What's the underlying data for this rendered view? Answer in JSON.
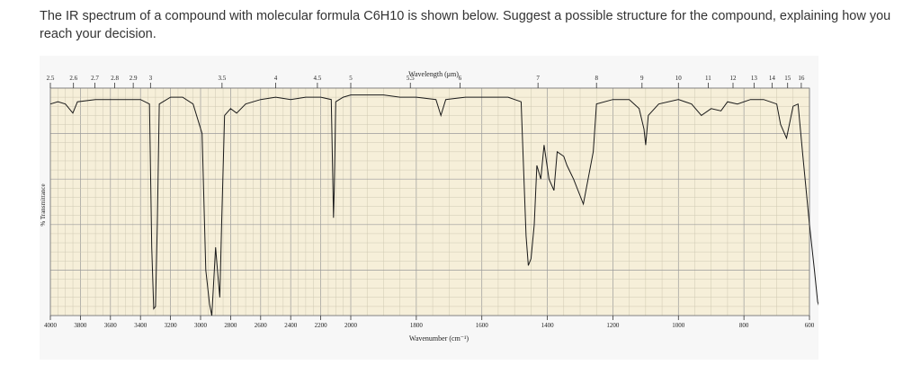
{
  "question": {
    "text": "The IR spectrum of a compound with molecular formula C6H10 is shown below. Suggest a possible structure for the compound, explaining how you reach your decision."
  },
  "chart_data": {
    "type": "line",
    "top_axis": {
      "label": "Wavelength (μm)",
      "ticks": [
        "2.5",
        "2.6",
        "2.7",
        "2.8",
        "2.9",
        "3",
        "3.5",
        "4",
        "4.5",
        "5",
        "5.5",
        "6",
        "7",
        "8",
        "9",
        "10",
        "11",
        "12",
        "13",
        "14",
        "15",
        "16"
      ]
    },
    "bottom_axis": {
      "label": "Wavenumber (cm⁻¹)",
      "ticks": [
        "4000",
        "3800",
        "3600",
        "3400",
        "3200",
        "3000",
        "2800",
        "2600",
        "2400",
        "2200",
        "2000",
        "1800",
        "1600",
        "1400",
        "1200",
        "1000",
        "800",
        "600"
      ],
      "range": [
        4000,
        600
      ]
    },
    "ylabel": "% Transmittance",
    "ylim": [
      0,
      100
    ],
    "grid": true,
    "colors": {
      "paper": "#f6efd9",
      "grid_major": "#9a9a9a",
      "grid_minor": "#cfc8b2",
      "trace": "#1a1a1a"
    },
    "series": [
      {
        "points": [
          [
            4000,
            93
          ],
          [
            3950,
            94
          ],
          [
            3900,
            93
          ],
          [
            3850,
            89
          ],
          [
            3820,
            94
          ],
          [
            3700,
            95
          ],
          [
            3500,
            95
          ],
          [
            3400,
            95
          ],
          [
            3340,
            93
          ],
          [
            3325,
            30
          ],
          [
            3312,
            3
          ],
          [
            3300,
            4
          ],
          [
            3288,
            40
          ],
          [
            3275,
            93
          ],
          [
            3200,
            96
          ],
          [
            3120,
            96
          ],
          [
            3050,
            93
          ],
          [
            2990,
            80
          ],
          [
            2965,
            20
          ],
          [
            2940,
            5
          ],
          [
            2925,
            0
          ],
          [
            2915,
            12
          ],
          [
            2900,
            30
          ],
          [
            2885,
            18
          ],
          [
            2872,
            8
          ],
          [
            2860,
            40
          ],
          [
            2840,
            88
          ],
          [
            2800,
            91
          ],
          [
            2760,
            89
          ],
          [
            2700,
            93
          ],
          [
            2600,
            95
          ],
          [
            2500,
            96
          ],
          [
            2400,
            95
          ],
          [
            2300,
            96
          ],
          [
            2200,
            96
          ],
          [
            2130,
            95
          ],
          [
            2120,
            60
          ],
          [
            2115,
            43
          ],
          [
            2110,
            55
          ],
          [
            2100,
            94
          ],
          [
            2050,
            96
          ],
          [
            2000,
            97
          ],
          [
            1900,
            97
          ],
          [
            1850,
            96
          ],
          [
            1800,
            96
          ],
          [
            1740,
            95
          ],
          [
            1725,
            88
          ],
          [
            1710,
            95
          ],
          [
            1650,
            96
          ],
          [
            1600,
            96
          ],
          [
            1520,
            96
          ],
          [
            1480,
            94
          ],
          [
            1465,
            35
          ],
          [
            1458,
            22
          ],
          [
            1450,
            25
          ],
          [
            1440,
            40
          ],
          [
            1432,
            66
          ],
          [
            1420,
            60
          ],
          [
            1410,
            75
          ],
          [
            1395,
            60
          ],
          [
            1380,
            55
          ],
          [
            1370,
            72
          ],
          [
            1350,
            70
          ],
          [
            1340,
            66
          ],
          [
            1320,
            60
          ],
          [
            1290,
            49
          ],
          [
            1260,
            72
          ],
          [
            1250,
            93
          ],
          [
            1200,
            95
          ],
          [
            1150,
            95
          ],
          [
            1120,
            91
          ],
          [
            1105,
            82
          ],
          [
            1100,
            75
          ],
          [
            1092,
            88
          ],
          [
            1060,
            93
          ],
          [
            1000,
            95
          ],
          [
            960,
            93
          ],
          [
            930,
            88
          ],
          [
            900,
            91
          ],
          [
            870,
            90
          ],
          [
            850,
            94
          ],
          [
            820,
            93
          ],
          [
            780,
            95
          ],
          [
            740,
            95
          ],
          [
            700,
            93
          ],
          [
            688,
            84
          ],
          [
            670,
            78
          ],
          [
            650,
            92
          ],
          [
            635,
            93
          ],
          [
            620,
            70
          ],
          [
            600,
            40
          ],
          [
            585,
            20
          ],
          [
            575,
            6
          ],
          [
            570,
            4
          ],
          [
            562,
            8
          ],
          [
            555,
            30
          ],
          [
            550,
            78
          ]
        ]
      }
    ]
  }
}
